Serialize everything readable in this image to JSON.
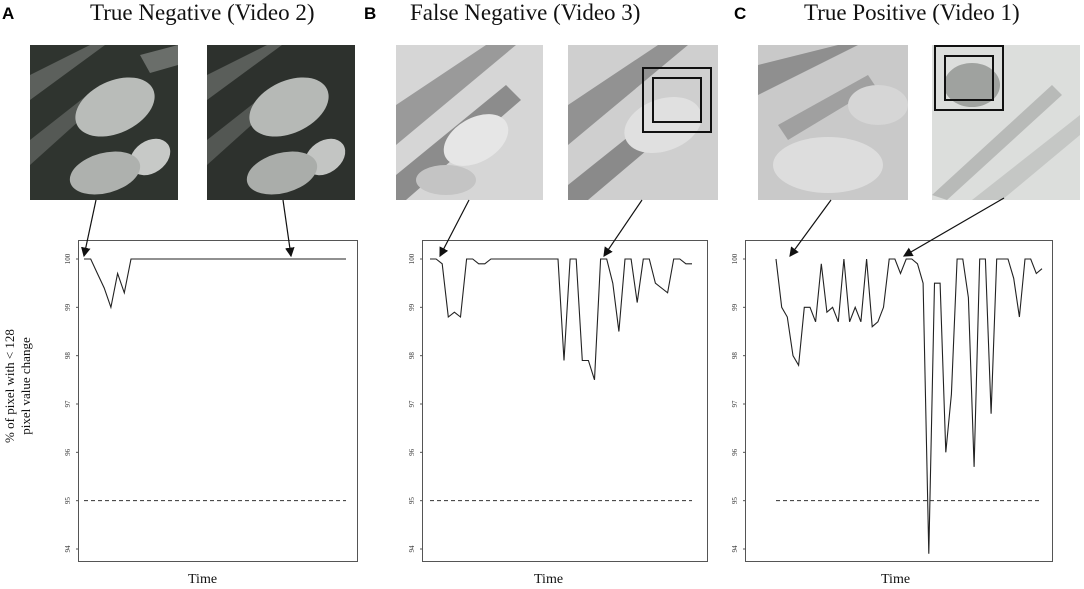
{
  "panels": [
    {
      "letter": "A",
      "title": "True Negative (Video 2)"
    },
    {
      "letter": "B",
      "title": "False Negative (Video 3)"
    },
    {
      "letter": "C",
      "title": "True Positive (Video 1)"
    }
  ],
  "ylabel_line1": "% of pixel with < 128",
  "ylabel_line2": "pixel value change",
  "colors": {
    "line": "#222222",
    "axis": "#555555",
    "frame_dark": "#2b2f2b",
    "frame_light": "#cfcfcf"
  },
  "chart_data": [
    {
      "type": "line",
      "title": "True Negative (Video 2)",
      "xlabel": "Time",
      "ylabel": "% of pixel with < 128 pixel value change",
      "ylim": [
        94,
        100
      ],
      "yticks": [
        "94",
        "95",
        "96",
        "97",
        "98",
        "99",
        "100"
      ],
      "threshold": 95,
      "y": [
        100,
        100,
        99.7,
        99.4,
        99.0,
        99.7,
        99.3,
        100,
        100,
        100,
        100,
        100,
        100,
        100,
        100,
        100,
        100,
        100,
        100,
        100,
        100,
        100,
        100,
        100,
        100,
        100,
        100,
        100,
        100,
        100,
        100,
        100,
        100,
        100,
        100,
        100,
        100,
        100,
        100,
        100
      ]
    },
    {
      "type": "line",
      "title": "False Negative (Video 3)",
      "xlabel": "Time",
      "ylabel": "% of pixel with < 128 pixel value change",
      "ylim": [
        94,
        100
      ],
      "yticks": [
        "94",
        "95",
        "96",
        "97",
        "98",
        "99",
        "100"
      ],
      "threshold": 95,
      "y": [
        100,
        100,
        99.9,
        98.8,
        98.9,
        98.8,
        100,
        100,
        99.9,
        99.9,
        100,
        100,
        100,
        100,
        100,
        100,
        100,
        100,
        100,
        100,
        100,
        100,
        97.9,
        100,
        100,
        97.9,
        97.9,
        97.5,
        100,
        100,
        99.5,
        98.5,
        100,
        100,
        99.1,
        100,
        100,
        99.5,
        99.4,
        99.3,
        100,
        100,
        99.9,
        99.9
      ]
    },
    {
      "type": "line",
      "title": "True Positive (Video 1)",
      "xlabel": "Time",
      "ylabel": "% of pixel with < 128 pixel value change",
      "ylim": [
        94,
        100
      ],
      "yticks": [
        "94",
        "95",
        "96",
        "97",
        "98",
        "99",
        "100"
      ],
      "threshold": 95,
      "y": [
        100,
        99.0,
        98.8,
        98.0,
        97.8,
        99.0,
        99.0,
        98.7,
        99.9,
        98.9,
        99.0,
        98.7,
        100,
        98.7,
        99.0,
        98.7,
        100,
        98.6,
        98.7,
        99.0,
        100,
        100,
        99.7,
        100,
        100,
        99.9,
        99.5,
        93.9,
        99.5,
        99.5,
        96.0,
        97.2,
        100,
        100,
        99.2,
        95.7,
        100,
        100,
        96.8,
        100,
        100,
        100,
        99.6,
        98.8,
        100,
        100,
        99.7,
        99.8
      ]
    }
  ]
}
